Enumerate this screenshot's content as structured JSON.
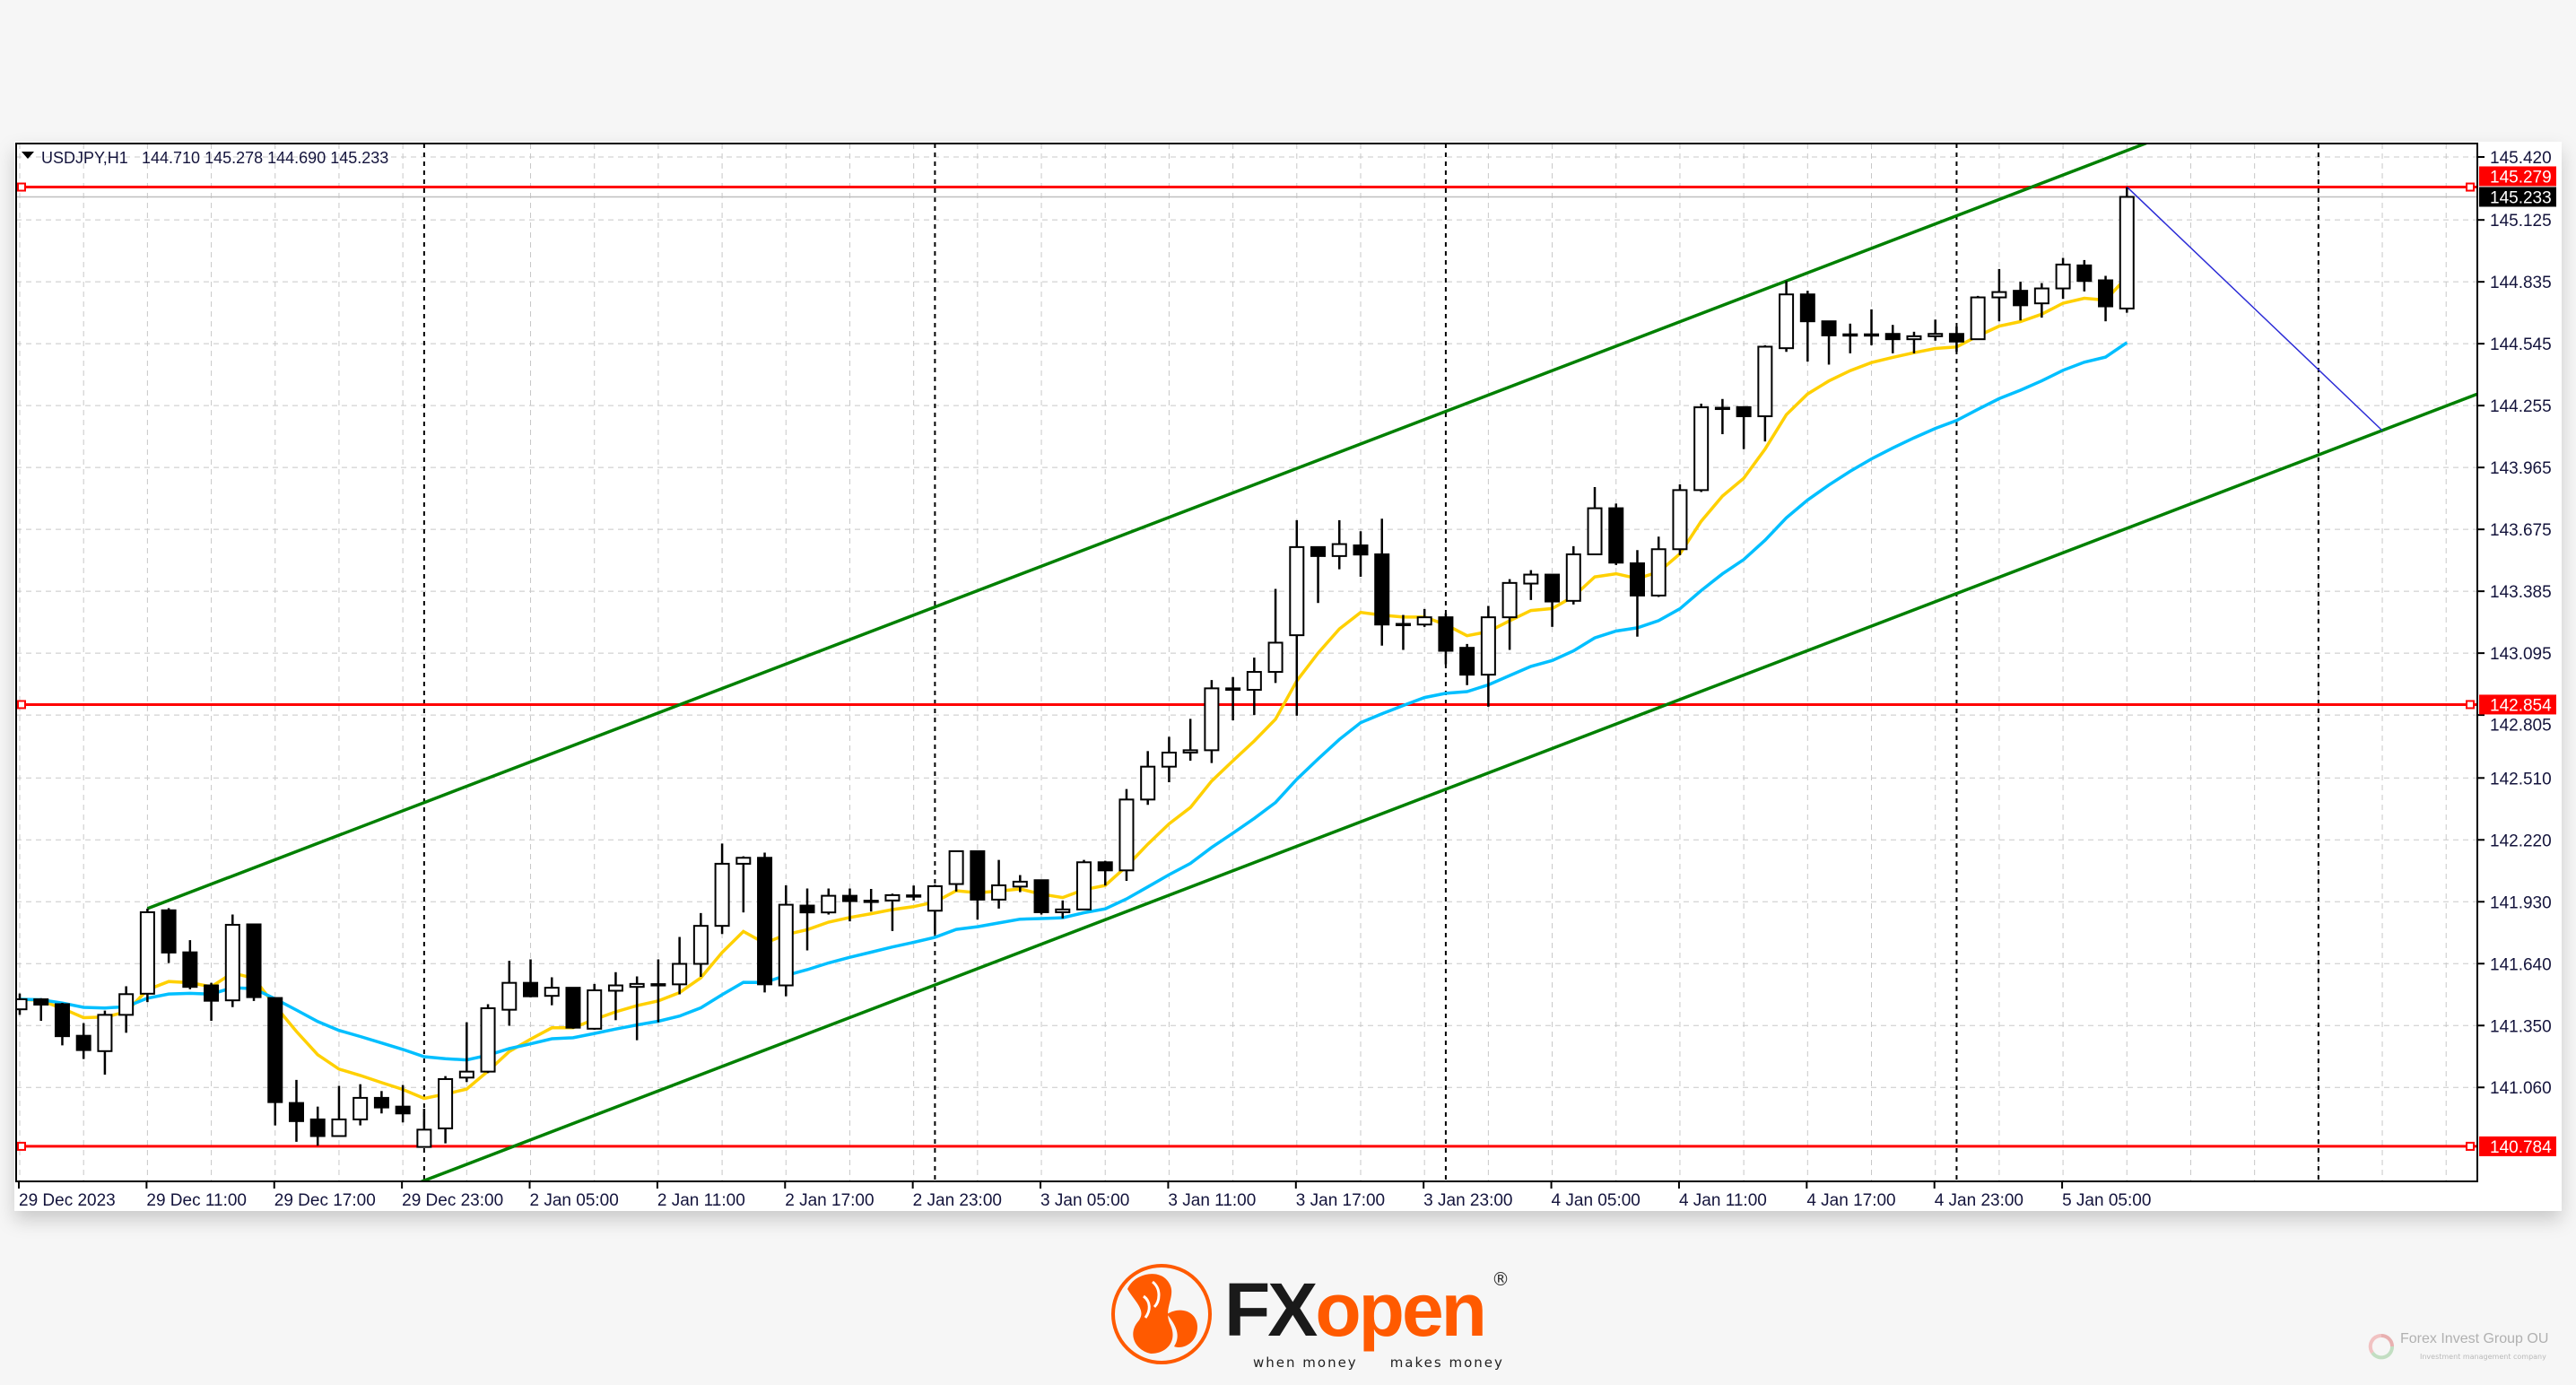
{
  "header": {
    "symbol": "USDJPY,H1",
    "ohlc_readout": "144.710 145.278 144.690 145.233"
  },
  "chart_data": {
    "type": "candlestick",
    "symbol": "USDJPY",
    "timeframe": "H1",
    "ylim": [
      140.62,
      145.483
    ],
    "y_ticks": [
      "145.420",
      "145.125",
      "144.835",
      "144.545",
      "144.255",
      "143.965",
      "143.675",
      "143.385",
      "143.095",
      "142.805",
      "142.510",
      "142.220",
      "141.930",
      "141.640",
      "141.350",
      "141.060"
    ],
    "x_ticks": [
      "29 Dec 2023",
      "29 Dec 11:00",
      "29 Dec 17:00",
      "29 Dec 23:00",
      "2 Jan 05:00",
      "2 Jan 11:00",
      "2 Jan 17:00",
      "2 Jan 23:00",
      "3 Jan 05:00",
      "3 Jan 11:00",
      "3 Jan 17:00",
      "3 Jan 23:00",
      "4 Jan 05:00",
      "4 Jan 11:00",
      "4 Jan 17:00",
      "4 Jan 23:00",
      "5 Jan 05:00"
    ],
    "grid": true,
    "colors": {
      "bull_body": "#ffffff",
      "bear_body": "#000000",
      "wick": "#000000",
      "ma_fast": "#ffd000",
      "ma_slow": "#00bfff",
      "channel": "#008000",
      "level": "#ff0000",
      "projection": "#2b2bd6",
      "bid_line": "#c0c0c0"
    },
    "sessions": [
      {
        "date": "29 Dec",
        "first_hour": 5,
        "ohlc": [
          [
            141.426,
            141.5,
            141.4,
            141.473
          ],
          [
            141.473,
            141.478,
            141.372,
            141.448
          ],
          [
            141.45,
            141.456,
            141.257,
            141.3
          ],
          [
            141.302,
            141.361,
            141.193,
            141.235
          ],
          [
            141.23,
            141.42,
            141.12,
            141.4
          ],
          [
            141.4,
            141.534,
            141.316,
            141.497
          ],
          [
            141.499,
            141.898,
            141.46,
            141.881
          ],
          [
            141.89,
            141.9,
            141.643,
            141.692
          ],
          [
            141.693,
            141.75,
            141.52,
            141.531
          ],
          [
            141.538,
            141.55,
            141.372,
            141.466
          ],
          [
            141.468,
            141.87,
            141.436,
            141.822
          ],
          [
            141.824,
            141.824,
            141.465,
            141.483
          ],
          [
            141.479,
            141.479,
            140.882,
            140.991
          ],
          [
            140.987,
            141.095,
            140.805,
            140.902
          ],
          [
            140.91,
            140.97,
            140.787,
            140.832
          ],
          [
            140.832,
            141.067,
            140.832,
            140.91
          ],
          [
            140.91,
            141.075,
            140.882,
            141.011
          ],
          [
            141.011,
            141.043,
            140.938,
            140.966
          ],
          [
            140.97,
            141.071,
            140.896,
            140.938
          ]
        ]
      },
      {
        "date": "2 Jan",
        "first_hour": 0,
        "ohlc": [
          [
            140.781,
            140.96,
            140.778,
            140.862
          ],
          [
            140.868,
            141.113,
            140.798,
            141.099
          ],
          [
            141.106,
            141.365,
            141.085,
            141.134
          ],
          [
            141.134,
            141.45,
            141.127,
            141.431
          ],
          [
            141.424,
            141.653,
            141.349,
            141.55
          ],
          [
            141.55,
            141.66,
            141.482,
            141.487
          ],
          [
            141.489,
            141.576,
            141.445,
            141.527
          ],
          [
            141.527,
            141.527,
            141.335,
            141.34
          ],
          [
            141.335,
            141.545,
            141.33,
            141.515
          ],
          [
            141.513,
            141.6,
            141.375,
            141.538
          ],
          [
            141.531,
            141.58,
            141.281,
            141.545
          ],
          [
            141.543,
            141.66,
            141.365,
            141.544
          ],
          [
            141.543,
            141.765,
            141.496,
            141.639
          ],
          [
            141.639,
            141.877,
            141.578,
            141.817
          ],
          [
            141.817,
            142.203,
            141.779,
            142.108
          ],
          [
            142.108,
            142.143,
            141.88,
            142.136
          ],
          [
            142.136,
            142.16,
            141.505,
            141.543
          ],
          [
            141.538,
            142.007,
            141.487,
            141.916
          ],
          [
            141.912,
            141.992,
            141.702,
            141.88
          ],
          [
            141.88,
            141.992,
            141.87,
            141.958
          ],
          [
            141.958,
            141.992,
            141.838,
            141.933
          ],
          [
            141.933,
            141.99,
            141.884,
            141.935
          ],
          [
            141.936,
            141.968,
            141.793,
            141.961
          ],
          [
            141.96,
            142.006,
            141.936,
            141.957
          ]
        ]
      },
      {
        "date": "3 Jan",
        "first_hour": 0,
        "ohlc": [
          [
            141.888,
            142.01,
            141.78,
            142.003
          ],
          [
            142.013,
            142.167,
            141.978,
            142.167
          ],
          [
            142.167,
            142.167,
            141.846,
            141.94
          ],
          [
            141.94,
            142.126,
            141.898,
            142.007
          ],
          [
            142.001,
            142.055,
            141.975,
            142.024
          ],
          [
            142.031,
            142.034,
            141.87,
            141.881
          ],
          [
            141.881,
            141.936,
            141.852,
            141.894
          ],
          [
            141.894,
            142.126,
            141.894,
            142.115
          ],
          [
            142.115,
            142.122,
            142.006,
            142.077
          ],
          [
            142.077,
            142.458,
            142.028,
            142.409
          ],
          [
            142.409,
            142.636,
            142.384,
            142.563
          ],
          [
            142.563,
            142.703,
            142.49,
            142.629
          ],
          [
            142.629,
            142.787,
            142.591,
            142.64
          ],
          [
            142.64,
            142.969,
            142.58,
            142.93
          ],
          [
            142.93,
            142.983,
            142.78,
            142.923
          ],
          [
            142.923,
            143.074,
            142.805,
            143.007
          ],
          [
            143.007,
            143.396,
            142.955,
            143.144
          ],
          [
            143.179,
            143.718,
            142.802,
            143.592
          ],
          [
            143.592,
            143.592,
            143.33,
            143.55
          ],
          [
            143.55,
            143.718,
            143.488,
            143.606
          ],
          [
            143.6,
            143.666,
            143.453,
            143.557
          ],
          [
            143.558,
            143.725,
            143.13,
            143.229
          ],
          [
            143.23,
            143.274,
            143.11,
            143.232
          ],
          [
            143.229,
            143.302,
            143.218,
            143.263
          ]
        ]
      },
      {
        "date": "4 Jan",
        "first_hour": 0,
        "ohlc": [
          [
            143.263,
            143.281,
            143.043,
            143.106
          ],
          [
            143.12,
            143.138,
            142.945,
            142.994
          ],
          [
            142.994,
            143.316,
            142.844,
            143.263
          ],
          [
            143.263,
            143.442,
            143.11,
            143.424
          ],
          [
            143.421,
            143.484,
            143.344,
            143.463
          ],
          [
            143.463,
            143.463,
            143.218,
            143.337
          ],
          [
            143.34,
            143.596,
            143.323,
            143.558
          ],
          [
            143.558,
            143.873,
            143.558,
            143.774
          ],
          [
            143.774,
            143.796,
            143.508,
            143.519
          ],
          [
            143.516,
            143.578,
            143.172,
            143.365
          ],
          [
            143.365,
            143.641,
            143.358,
            143.582
          ],
          [
            143.582,
            143.886,
            143.554,
            143.859
          ],
          [
            143.859,
            144.264,
            143.85,
            144.247
          ],
          [
            144.244,
            144.286,
            144.121,
            144.245
          ],
          [
            144.248,
            144.248,
            144.051,
            144.205
          ],
          [
            144.205,
            144.538,
            144.087,
            144.531
          ],
          [
            144.524,
            144.839,
            144.507,
            144.776
          ],
          [
            144.776,
            144.793,
            144.461,
            144.65
          ],
          [
            144.65,
            144.65,
            144.447,
            144.584
          ],
          [
            144.589,
            144.639,
            144.5,
            144.588
          ],
          [
            144.588,
            144.706,
            144.538,
            144.589
          ],
          [
            144.591,
            144.633,
            144.5,
            144.566
          ],
          [
            144.566,
            144.601,
            144.5,
            144.58
          ],
          [
            144.58,
            144.658,
            144.559,
            144.591
          ]
        ]
      },
      {
        "date": "5 Jan",
        "first_hour": 0,
        "ohlc": [
          [
            144.591,
            144.625,
            144.507,
            144.555
          ],
          [
            144.566,
            144.769,
            144.566,
            144.762
          ],
          [
            144.762,
            144.895,
            144.65,
            144.787
          ],
          [
            144.793,
            144.835,
            144.654,
            144.725
          ],
          [
            144.734,
            144.829,
            144.667,
            144.804
          ],
          [
            144.804,
            144.947,
            144.755,
            144.916
          ],
          [
            144.912,
            144.937,
            144.79,
            144.839
          ],
          [
            144.842,
            144.863,
            144.65,
            144.72
          ],
          [
            144.71,
            145.278,
            144.69,
            145.233
          ]
        ]
      }
    ],
    "moving_averages": [
      {
        "color_key": "ma_fast"
      },
      {
        "color_key": "ma_slow"
      }
    ],
    "levels": [
      {
        "price": 145.279,
        "label": "145.279"
      },
      {
        "price": 142.854,
        "label": "142.854"
      },
      {
        "price": 140.784,
        "label": "140.784"
      }
    ],
    "current_price": {
      "price": 145.233,
      "label": "145.233"
    },
    "trend_lines": [
      {
        "kind": "channel-upper",
        "p1": {
          "time": "29 Dec 11:00",
          "price": 141.898
        },
        "p2": {
          "time": "4 Jan 16:00",
          "price": 144.839
        },
        "ray_right": true,
        "ray_left": false
      },
      {
        "kind": "channel-lower",
        "p1": {
          "time": "29 Dec 23:00",
          "price": 140.585
        },
        "p2": {
          "time": "5 Jan 08:00",
          "price": 143.68
        },
        "ray_right": true,
        "ray_left": true
      },
      {
        "kind": "projection",
        "p1": {
          "time": "5 Jan 08:00",
          "price": 145.28
        },
        "p2": {
          "time": "5 Jan 20:00",
          "price": 144.138
        },
        "ray_right": false,
        "ray_left": false
      }
    ]
  },
  "branding": {
    "logo_fx": "FX",
    "logo_open": "open",
    "registered": "®",
    "tagline_left": "when money",
    "tagline_right": "makes money",
    "watermark_title": "Forex Invest Group OU",
    "watermark_sub": "Investment management company"
  }
}
